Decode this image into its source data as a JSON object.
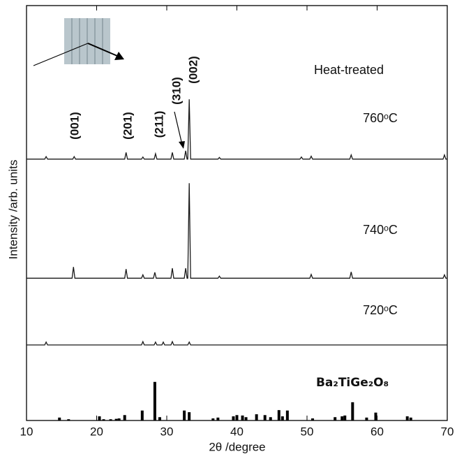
{
  "chart_data": {
    "type": "line",
    "xlabel": "2θ /degree",
    "ylabel": "Intensity /arb. units",
    "xlim": [
      10,
      70
    ],
    "xticks": [
      10,
      20,
      30,
      40,
      50,
      60,
      70
    ],
    "ylim": [
      0,
      100
    ],
    "condition": "Heat-treated",
    "annotations": [
      "(001)",
      "(201)",
      "(211)",
      "(310)",
      "(002)"
    ],
    "series": [
      {
        "name": "760ᵒC",
        "color": "#1a1a1a",
        "x": [
          10,
          12.6,
          12.8,
          13.0,
          16.6,
          16.8,
          17.0,
          24.0,
          24.2,
          24.4,
          26.4,
          26.6,
          26.8,
          28.2,
          28.4,
          28.6,
          30.6,
          30.8,
          31.0,
          32.5,
          32.7,
          32.9,
          33.0,
          33.2,
          33.4,
          37.3,
          37.5,
          37.7,
          49.0,
          49.2,
          49.4,
          50.4,
          50.6,
          50.8,
          56.1,
          56.3,
          56.5,
          69.4,
          69.6,
          69.8,
          70
        ],
        "values": [
          63,
          63,
          63.6,
          63,
          63,
          63.6,
          63,
          63,
          64.6,
          63,
          63,
          63.5,
          63,
          63,
          64.3,
          63,
          63,
          64.6,
          63,
          63,
          65,
          63,
          63,
          77.4,
          63,
          63,
          63.4,
          63,
          63,
          63.5,
          63,
          63,
          63.7,
          63,
          63,
          64,
          63,
          63,
          64,
          63,
          63
        ]
      },
      {
        "name": "740ᵒC",
        "color": "#1a1a1a",
        "x": [
          10,
          16.5,
          16.7,
          16.9,
          24.0,
          24.2,
          24.4,
          26.4,
          26.6,
          26.8,
          28.1,
          28.3,
          28.5,
          30.6,
          30.8,
          31.0,
          32.5,
          32.7,
          32.9,
          33.0,
          33.2,
          33.4,
          37.3,
          37.5,
          37.7,
          50.4,
          50.6,
          50.8,
          56.1,
          56.3,
          56.5,
          69.4,
          69.6,
          69.8,
          70
        ],
        "values": [
          34.3,
          34.3,
          37.0,
          34.3,
          34.3,
          36.5,
          34.3,
          34.3,
          35.1,
          34.3,
          34.3,
          35.7,
          34.3,
          34.3,
          36.7,
          34.3,
          34.3,
          36.7,
          34.3,
          34.3,
          57.2,
          34.3,
          34.3,
          34.8,
          34.3,
          34.3,
          35.2,
          34.3,
          34.3,
          35.8,
          34.3,
          34.3,
          35.1,
          34.3,
          34.3
        ]
      },
      {
        "name": "720ᵒC",
        "color": "#1a1a1a",
        "x": [
          10,
          12.6,
          12.8,
          13.0,
          26.4,
          26.6,
          26.8,
          28.2,
          28.4,
          28.6,
          29.3,
          29.5,
          29.7,
          30.6,
          30.8,
          31.0,
          33.0,
          33.2,
          33.4,
          70
        ],
        "values": [
          18.2,
          18.2,
          18.9,
          18.2,
          18.2,
          19.0,
          18.2,
          18.2,
          18.9,
          18.2,
          18.2,
          18.9,
          18.2,
          18.2,
          19.0,
          18.2,
          18.2,
          18.9,
          18.2,
          18.2
        ]
      }
    ],
    "reference": {
      "name": "Ba₂TiGe₂O₈",
      "color": "#000000",
      "x": [
        14.7,
        16.0,
        20.4,
        21.0,
        22.0,
        22.8,
        23.2,
        24.0,
        26.5,
        28.3,
        29.0,
        32.5,
        33.2,
        36.6,
        37.3,
        39.5,
        40.0,
        40.8,
        41.3,
        42.8,
        44.0,
        44.8,
        46.0,
        46.5,
        47.2,
        50.8,
        54.0,
        55.0,
        55.4,
        56.5,
        58.5,
        59.8,
        64.3,
        64.8
      ],
      "values": [
        0.7,
        0.3,
        1.0,
        0.3,
        0.3,
        0.4,
        0.5,
        1.3,
        2.4,
        9.3,
        0.8,
        2.4,
        2.0,
        0.5,
        0.7,
        1.0,
        1.3,
        1.2,
        0.8,
        1.5,
        1.3,
        0.8,
        2.5,
        1.0,
        2.4,
        0.5,
        0.8,
        1.0,
        1.2,
        4.4,
        0.7,
        1.9,
        1.0,
        0.7
      ]
    }
  }
}
